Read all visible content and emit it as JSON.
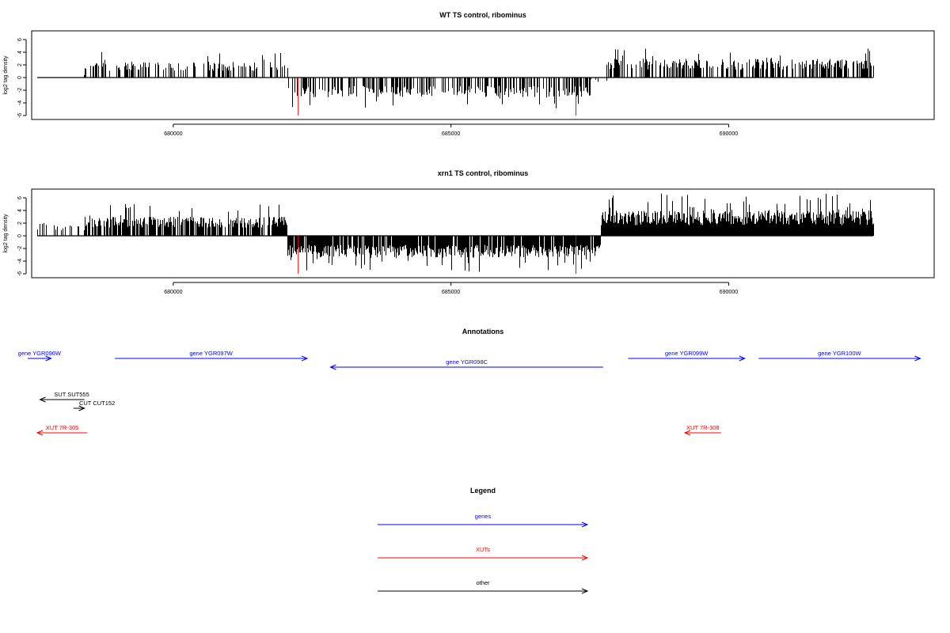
{
  "chart_data": [
    {
      "type": "bar",
      "title": "WT TS control, ribominus",
      "xlabel": "",
      "ylabel": "log2 tag density",
      "xlim": [
        677450,
        693700
      ],
      "ylim": [
        -6,
        6
      ],
      "xticks": [
        680000,
        685000,
        690000
      ],
      "xtick_labels": [
        "680000",
        "685000",
        "690000"
      ],
      "yticks": [
        -6,
        -4,
        -2,
        0,
        2,
        4,
        6
      ],
      "ytick_labels": [
        "-6",
        "-4",
        "-2",
        "0",
        "2",
        "4",
        "6"
      ],
      "grid": false,
      "segments": [
        {
          "from": 677550,
          "to": 678400,
          "strand": "+",
          "density": 0.05,
          "max": 1.2
        },
        {
          "from": 678400,
          "to": 682050,
          "strand": "+",
          "density": 0.45,
          "max": 4.4
        },
        {
          "from": 682050,
          "to": 687500,
          "strand": "-",
          "density": 0.5,
          "max": 5.5
        },
        {
          "from": 687500,
          "to": 687800,
          "strand": "-",
          "density": 0.2,
          "max": 1.2
        },
        {
          "from": 687800,
          "to": 692600,
          "strand": "+",
          "density": 0.55,
          "max": 5.2
        }
      ],
      "highlights": [
        {
          "x": 682250,
          "value": -6.0,
          "color": "#ff0000"
        },
        {
          "x": 687250,
          "value": -6.0,
          "color": "#ff0000"
        }
      ]
    },
    {
      "type": "bar",
      "title": "xrn1 TS control, ribominus",
      "xlabel": "",
      "ylabel": "log2 tag density",
      "xlim": [
        677450,
        693700
      ],
      "ylim": [
        -6,
        6
      ],
      "xticks": [
        680000,
        685000,
        690000
      ],
      "xtick_labels": [
        "680000",
        "685000",
        "690000"
      ],
      "yticks": [
        -6,
        -4,
        -2,
        0,
        2,
        4,
        6
      ],
      "ytick_labels": [
        "-6",
        "-4",
        "-2",
        "0",
        "2",
        "4",
        "6"
      ],
      "grid": false,
      "segments": [
        {
          "from": 677550,
          "to": 678400,
          "strand": "+",
          "density": 0.25,
          "max": 3.6
        },
        {
          "from": 678400,
          "to": 682050,
          "strand": "+",
          "density": 0.85,
          "max": 5.3
        },
        {
          "from": 682050,
          "to": 687700,
          "strand": "-",
          "density": 0.9,
          "max": 6.0
        },
        {
          "from": 687700,
          "to": 692600,
          "strand": "+",
          "density": 1.0,
          "max": 7.0
        }
      ],
      "highlights": [
        {
          "x": 682250,
          "value": -6.0,
          "color": "#ff0000"
        },
        {
          "x": 687250,
          "value": -6.0,
          "color": "#ff0000"
        }
      ]
    }
  ],
  "annotations": {
    "title": "Annotations",
    "features": [
      {
        "label": "gene YGR096W",
        "from": 677300,
        "to": 677800,
        "strand": "+",
        "color": "#0000ff",
        "row": 0
      },
      {
        "label": "gene YGR097W",
        "from": 678950,
        "to": 682410,
        "strand": "+",
        "color": "#0000ff",
        "row": 0
      },
      {
        "label": "gene YGR098C",
        "from": 682830,
        "to": 687740,
        "strand": "-",
        "color": "#0000ff",
        "row": 1
      },
      {
        "label": "gene YGR099W",
        "from": 688190,
        "to": 690290,
        "strand": "+",
        "color": "#0000ff",
        "row": 0
      },
      {
        "label": "gene YGR100W",
        "from": 690540,
        "to": 693450,
        "strand": "+",
        "color": "#0000ff",
        "row": 0
      },
      {
        "label": "SUT SUT555",
        "from": 677600,
        "to": 678400,
        "strand": "-",
        "color": "#000000",
        "row": 2
      },
      {
        "label": "CUT CUT152",
        "from": 678200,
        "to": 678400,
        "strand": "+",
        "color": "#000000",
        "row": 3
      },
      {
        "label": "XUT 7R-305",
        "from": 677550,
        "to": 678450,
        "strand": "-",
        "color": "#ff0000",
        "row": 4
      },
      {
        "label": "XUT 7R-308",
        "from": 689210,
        "to": 689860,
        "strand": "-",
        "color": "#ff0000",
        "row": 4
      }
    ]
  },
  "legend": {
    "title": "Legend",
    "items": [
      {
        "label": "genes",
        "color": "#0000ff"
      },
      {
        "label": "XUTs",
        "color": "#ff0000"
      },
      {
        "label": "other",
        "color": "#000000"
      }
    ]
  }
}
